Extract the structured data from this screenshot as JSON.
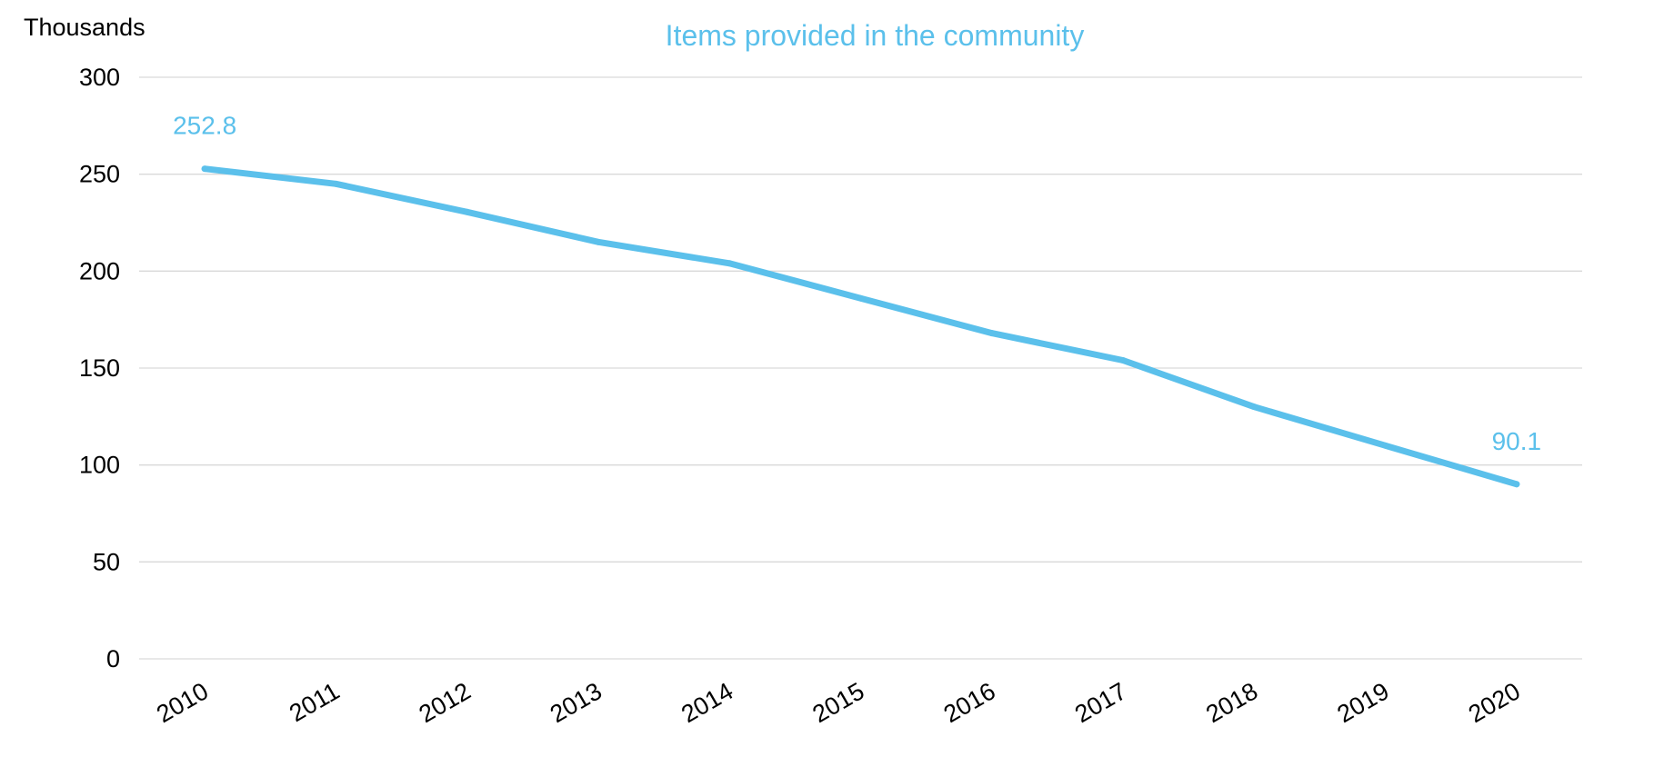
{
  "chart_data": {
    "type": "line",
    "title": "Items provided in the community",
    "y_unit_label": "Thousands",
    "xlabel": "",
    "ylabel": "",
    "categories": [
      "2010",
      "2011",
      "2012",
      "2013",
      "2014",
      "2015",
      "2016",
      "2017",
      "2018",
      "2019",
      "2020"
    ],
    "series": [
      {
        "values": [
          252.8,
          245,
          230.5,
          215,
          204,
          186,
          168,
          154,
          130,
          110,
          90.1
        ],
        "color": "#5bc0eb"
      }
    ],
    "data_labels": [
      {
        "index": 0,
        "text": "252.8"
      },
      {
        "index": 10,
        "text": "90.1"
      }
    ],
    "y_ticks": [
      "0",
      "50",
      "100",
      "150",
      "200",
      "250",
      "300"
    ],
    "ylim": [
      0,
      300
    ],
    "grid": true,
    "legend": "none",
    "colors": {
      "line": "#5bc0eb",
      "title": "#5bc0eb",
      "grid": "#d9d9d9"
    }
  }
}
